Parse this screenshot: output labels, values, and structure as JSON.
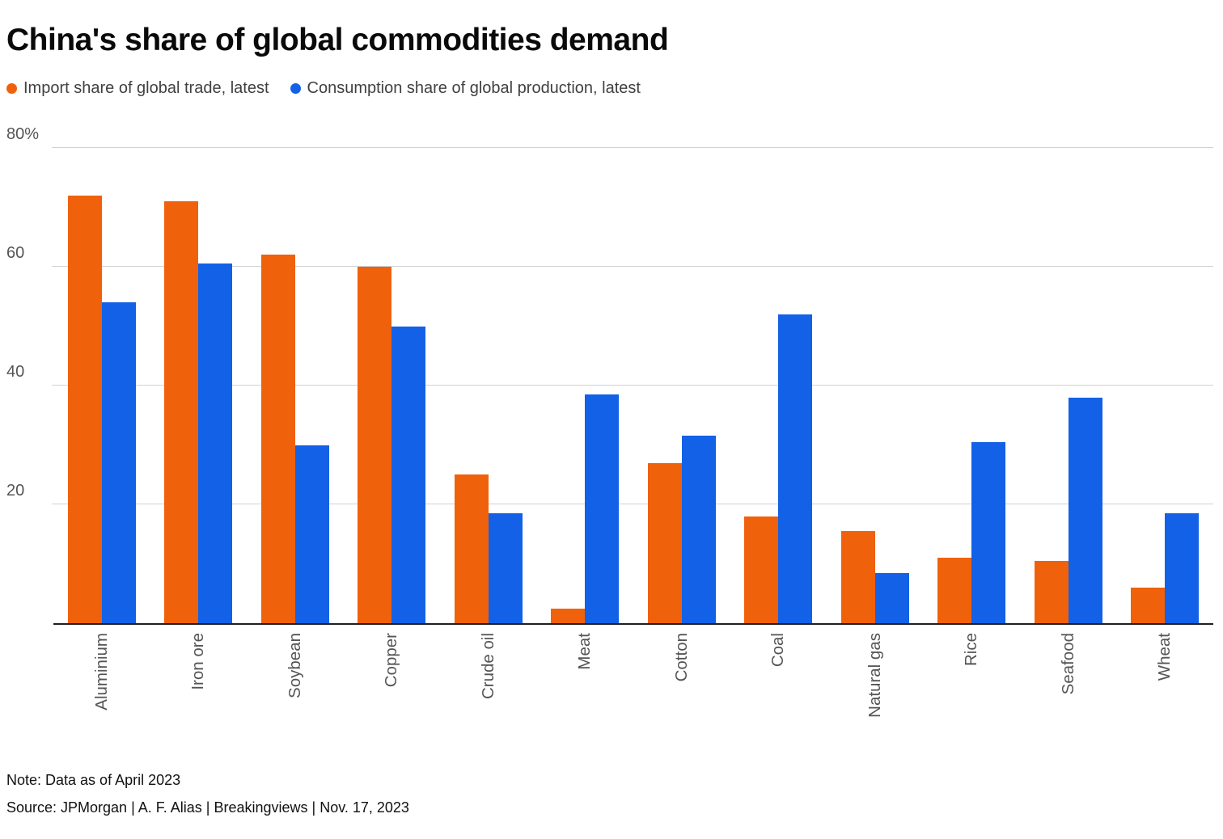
{
  "title": "China's share of global commodities demand",
  "legend": [
    {
      "label": "Import share of global trade, latest",
      "color": "#f0610c"
    },
    {
      "label": "Consumption share of global production, latest",
      "color": "#1261e7"
    }
  ],
  "chart_data": {
    "type": "bar",
    "title": "China's share of global commodities demand",
    "categories": [
      "Aluminium",
      "Iron ore",
      "Soybean",
      "Copper",
      "Crude oil",
      "Meat",
      "Cotton",
      "Coal",
      "Natural gas",
      "Rice",
      "Seafood",
      "Wheat"
    ],
    "series": [
      {
        "name": "Import share of global trade, latest",
        "color": "#f0610c",
        "values": [
          72,
          71,
          62,
          60,
          25,
          2.5,
          27,
          18,
          15.5,
          11,
          10.5,
          6
        ]
      },
      {
        "name": "Consumption share of global production, latest",
        "color": "#1261e7",
        "values": [
          54,
          60.5,
          30,
          50,
          18.5,
          38.5,
          31.5,
          52,
          8.5,
          30.5,
          38,
          18.5
        ]
      }
    ],
    "xlabel": "",
    "ylabel": "",
    "ylim": [
      0,
      80
    ],
    "yticks": [
      20,
      40,
      60,
      80
    ],
    "ytick_labels": [
      "20",
      "40",
      "60",
      "80%"
    ],
    "grid": true,
    "legend_position": "top"
  },
  "footer": {
    "note": "Note: Data as of April 2023",
    "source": "Source: JPMorgan | A. F. Alias | Breakingviews | Nov. 17, 2023"
  }
}
